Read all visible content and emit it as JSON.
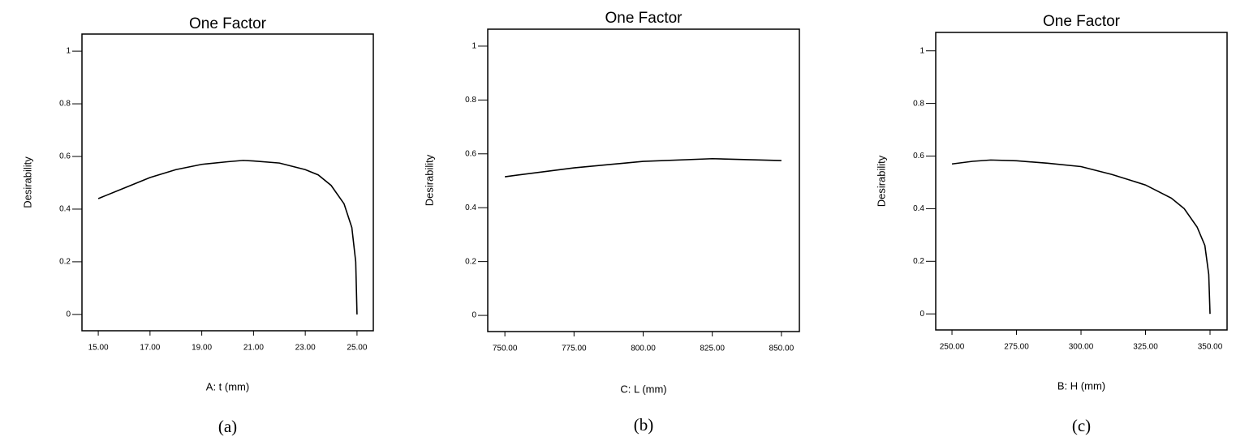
{
  "chart_data": [
    {
      "type": "line",
      "title": "One Factor",
      "x_label": "A: t (mm)",
      "y_label": "Desirability",
      "caption": "(a)",
      "color": "#000000",
      "x": [
        15,
        16,
        17,
        18,
        19,
        20,
        20.6,
        21,
        22,
        23,
        23.5,
        24,
        24.5,
        24.8,
        24.95,
        25
      ],
      "values": [
        0.44,
        0.48,
        0.52,
        0.55,
        0.57,
        0.58,
        0.585,
        0.583,
        0.575,
        0.55,
        0.53,
        0.49,
        0.42,
        0.33,
        0.2,
        0
      ],
      "xlim": [
        14.37,
        25.63
      ],
      "ylim": [
        -0.062,
        1.065
      ],
      "xticks": [
        {
          "value": 15,
          "label": "15.00"
        },
        {
          "value": 17,
          "label": "17.00"
        },
        {
          "value": 19,
          "label": "19.00"
        },
        {
          "value": 21,
          "label": "21.00"
        },
        {
          "value": 23,
          "label": "23.00"
        },
        {
          "value": 25,
          "label": "25.00"
        }
      ],
      "yticks": [
        0,
        0.2,
        0.4,
        0.6,
        0.8,
        1
      ]
    },
    {
      "type": "line",
      "title": "One Factor",
      "x_label": "C: L (mm)",
      "y_label": "Desirability",
      "caption": "(b)",
      "color": "#000000",
      "x": [
        750,
        775,
        800,
        825,
        850
      ],
      "values": [
        0.515,
        0.548,
        0.572,
        0.582,
        0.575
      ],
      "xlim": [
        743.8,
        856.5
      ],
      "ylim": [
        -0.06,
        1.063
      ],
      "xticks": [
        {
          "value": 750,
          "label": "750.00"
        },
        {
          "value": 775,
          "label": "775.00"
        },
        {
          "value": 800,
          "label": "800.00"
        },
        {
          "value": 825,
          "label": "825.00"
        },
        {
          "value": 850,
          "label": "850.00"
        }
      ],
      "yticks": [
        0,
        0.2,
        0.4,
        0.6,
        0.8,
        1
      ]
    },
    {
      "type": "line",
      "title": "One Factor",
      "x_label": "B: H (mm)",
      "y_label": "Desirability",
      "caption": "(c)",
      "color": "#000000",
      "x": [
        250,
        258,
        265,
        275,
        287,
        300,
        312,
        325,
        335,
        340,
        345,
        348,
        349.5,
        350
      ],
      "values": [
        0.57,
        0.58,
        0.585,
        0.582,
        0.573,
        0.56,
        0.53,
        0.49,
        0.44,
        0.4,
        0.33,
        0.26,
        0.15,
        0
      ],
      "xlim": [
        243.7,
        356.6
      ],
      "ylim": [
        -0.061,
        1.07
      ],
      "xticks": [
        {
          "value": 250,
          "label": "250.00"
        },
        {
          "value": 275,
          "label": "275.00"
        },
        {
          "value": 300,
          "label": "300.00"
        },
        {
          "value": 325,
          "label": "325.00"
        },
        {
          "value": 350,
          "label": "350.00"
        }
      ],
      "yticks": [
        0,
        0.2,
        0.4,
        0.6,
        0.8,
        1
      ]
    }
  ]
}
